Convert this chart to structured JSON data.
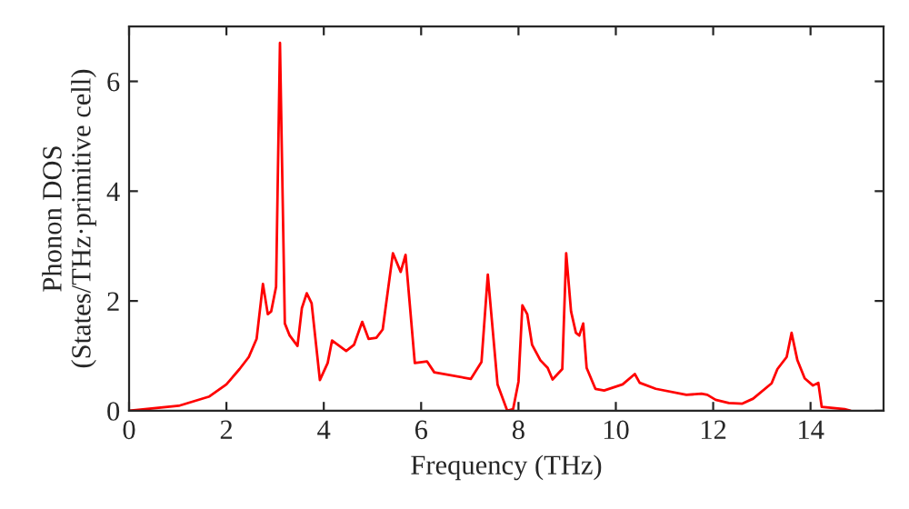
{
  "chart_data": {
    "type": "line",
    "xlabel": "Frequency (THz)",
    "ylabel": "Phonon DOS\n(States/THz·primitive cell)",
    "xlim": [
      0,
      15.5
    ],
    "ylim": [
      0,
      7
    ],
    "xticks": [
      0,
      2,
      4,
      6,
      8,
      10,
      12,
      14
    ],
    "yticks": [
      0,
      2,
      4,
      6
    ],
    "grid": false,
    "legend": false,
    "series": [
      {
        "color": "#ff0000",
        "x": [
          0,
          1.02,
          1.65,
          2.0,
          2.27,
          2.46,
          2.62,
          2.75,
          2.85,
          2.92,
          3.02,
          3.1,
          3.2,
          3.3,
          3.46,
          3.55,
          3.65,
          3.75,
          3.92,
          4.08,
          4.17,
          4.46,
          4.62,
          4.79,
          4.92,
          5.08,
          5.21,
          5.42,
          5.58,
          5.68,
          5.87,
          6.12,
          6.27,
          7.02,
          7.24,
          7.37,
          7.57,
          7.77,
          7.89,
          8.0,
          8.08,
          8.18,
          8.28,
          8.45,
          8.6,
          8.7,
          8.9,
          8.98,
          9.08,
          9.18,
          9.25,
          9.33,
          9.4,
          9.58,
          9.76,
          10.14,
          10.39,
          10.49,
          10.82,
          11.45,
          11.76,
          11.88,
          12.05,
          12.32,
          12.6,
          12.82,
          13.2,
          13.32,
          13.51,
          13.61,
          13.73,
          13.88,
          14.05,
          14.16,
          14.23,
          14.7,
          14.82
        ],
        "values": [
          0,
          0.09,
          0.26,
          0.48,
          0.76,
          0.98,
          1.31,
          2.31,
          1.76,
          1.81,
          2.26,
          6.7,
          1.59,
          1.37,
          1.18,
          1.87,
          2.14,
          1.96,
          0.56,
          0.87,
          1.28,
          1.09,
          1.2,
          1.62,
          1.31,
          1.33,
          1.48,
          2.87,
          2.53,
          2.84,
          0.87,
          0.9,
          0.7,
          0.58,
          0.89,
          2.48,
          0.48,
          0,
          0.03,
          0.53,
          1.92,
          1.76,
          1.2,
          0.92,
          0.78,
          0.57,
          0.76,
          2.87,
          1.81,
          1.42,
          1.37,
          1.59,
          0.78,
          0.4,
          0.37,
          0.48,
          0.67,
          0.51,
          0.4,
          0.29,
          0.31,
          0.29,
          0.2,
          0.14,
          0.13,
          0.22,
          0.5,
          0.76,
          0.98,
          1.42,
          0.92,
          0.59,
          0.46,
          0.51,
          0.07,
          0.03,
          0
        ]
      }
    ]
  }
}
